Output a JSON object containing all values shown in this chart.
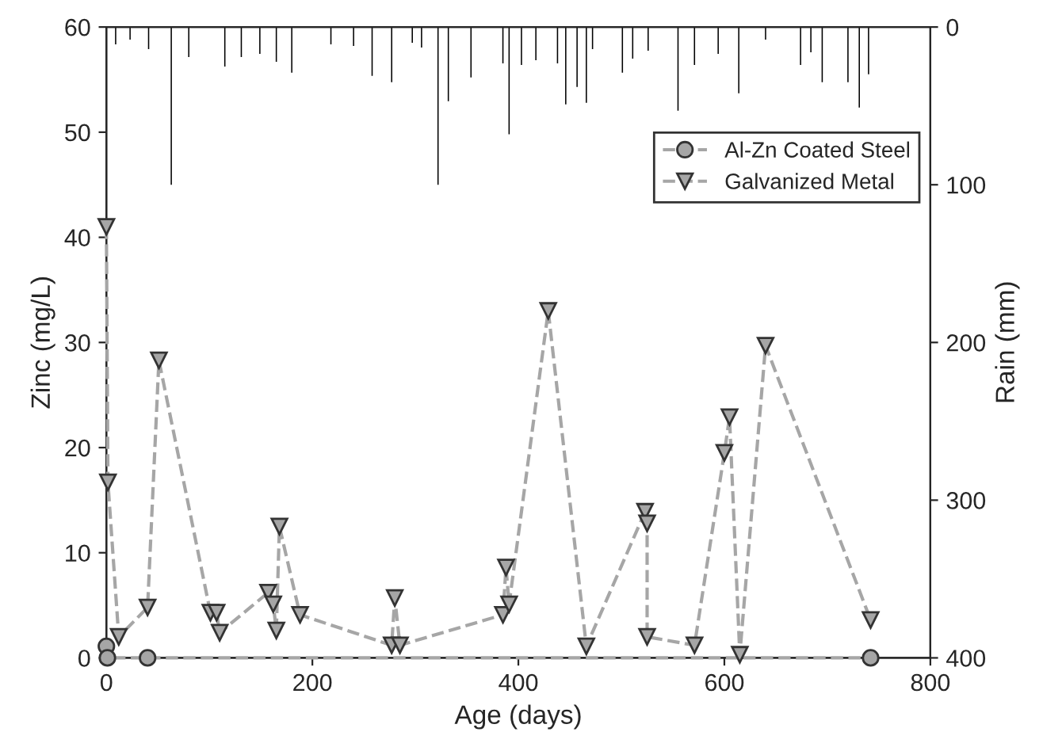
{
  "chart_data": {
    "type": "line",
    "xlabel": "Age (days)",
    "ylabel": "Zinc (mg/L)",
    "y2label": "Rain (mm)",
    "xlim": [
      0,
      800
    ],
    "xticks": [
      0,
      200,
      400,
      600,
      800
    ],
    "ylim": [
      0,
      60
    ],
    "yticks": [
      0,
      10,
      20,
      30,
      40,
      50,
      60
    ],
    "y2lim": [
      400,
      0
    ],
    "y2ticks": [
      0,
      100,
      200,
      300,
      400
    ],
    "grid": false,
    "legend": "top right",
    "line_style": "dashed",
    "series": [
      {
        "name": "Al-Zn Coated Steel",
        "marker": "circle",
        "color": "#a6a6a6",
        "x": [
          0,
          1,
          40,
          742
        ],
        "values": [
          1.1,
          0,
          0,
          0
        ]
      },
      {
        "name": "Galvanized Metal",
        "marker": "triangle",
        "color": "#a6a6a6",
        "x": [
          0,
          1.5,
          12,
          40,
          51,
          101,
          107,
          110,
          157,
          162,
          165,
          168,
          188,
          277,
          280,
          285,
          385,
          388,
          391,
          429,
          466,
          523,
          525,
          525,
          571,
          600,
          605,
          615,
          640,
          742
        ],
        "values": [
          41,
          16.7,
          2,
          4.8,
          28.3,
          4.3,
          4.3,
          2.4,
          6.2,
          5.1,
          2.6,
          12.5,
          4.1,
          1.2,
          5.7,
          1.2,
          4.1,
          8.6,
          5.1,
          33.0,
          1.1,
          13.9,
          12.8,
          2.0,
          1.2,
          19.5,
          22.9,
          0.3,
          29.7,
          3.6
        ]
      },
      {
        "type": "bar",
        "axis": "y2",
        "color": "#000000",
        "x": [
          9,
          23,
          41,
          63,
          80,
          115,
          131,
          149,
          165,
          180,
          218,
          240,
          258,
          277,
          297,
          306,
          322,
          332,
          354,
          385,
          391,
          403,
          417,
          438,
          446,
          457,
          466,
          472,
          501,
          511,
          526,
          555,
          571,
          594,
          614,
          640,
          674,
          684,
          695,
          720,
          731,
          740
        ],
        "values": [
          11,
          8,
          14,
          100,
          19,
          25,
          19,
          17,
          22,
          29,
          11,
          12,
          31,
          35,
          10,
          13,
          100,
          47,
          32,
          23,
          68,
          24,
          21,
          23,
          49,
          38,
          48,
          14,
          29,
          20,
          15,
          53,
          24,
          17,
          42,
          8,
          24,
          16,
          35,
          35,
          51,
          30
        ]
      }
    ]
  }
}
